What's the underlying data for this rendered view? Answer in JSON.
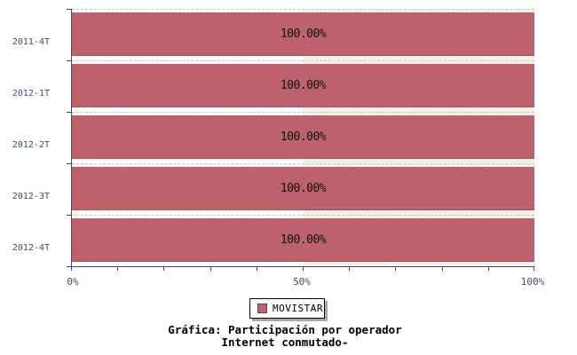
{
  "chart_data": {
    "type": "bar",
    "orientation": "horizontal",
    "categories": [
      "2011-4T",
      "2012-1T",
      "2012-2T",
      "2012-3T",
      "2012-4T"
    ],
    "series": [
      {
        "name": "MOVISTAR",
        "color": "#bd616c",
        "values": [
          100,
          100,
          100,
          100,
          100
        ]
      }
    ],
    "bar_labels": [
      "100.00%",
      "100.00%",
      "100.00%",
      "100.00%",
      "100.00%"
    ],
    "x_ticks": [
      "0%",
      "50%",
      "100%"
    ],
    "xlim": [
      0,
      100
    ],
    "x_minor_tick_step_percent": 10,
    "grid": "dashed horizontal lines at category band boundaries",
    "legend_position": "bottom-center",
    "title": "Gráfica: Participación por operador Internet conmutado-"
  },
  "legend": {
    "items": [
      {
        "label": "MOVISTAR",
        "color": "#bd616c"
      }
    ]
  },
  "caption": {
    "line1": "Gráfica: Participación por operador",
    "line2": "Internet conmutado-"
  },
  "colors": {
    "bar_fill": "#bd616c",
    "axis": "#3f4c66",
    "axis_label": "#3e4b66",
    "gridline": "#c6c6c6",
    "plot_tint_right_half": "#f3f1e9",
    "legend_shadow": "#a6a6a6",
    "background": "#ffffff"
  }
}
